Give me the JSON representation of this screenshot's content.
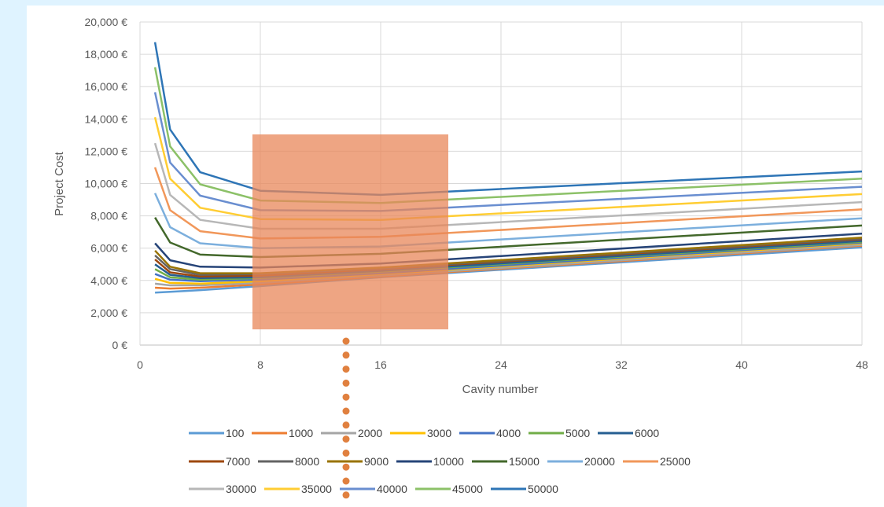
{
  "chart_data": {
    "type": "line",
    "xlabel": "Cavity number",
    "ylabel": "Project Cost",
    "xlim": [
      0,
      48
    ],
    "ylim": [
      0,
      20000
    ],
    "x_ticks": [
      "0",
      "8",
      "16",
      "24",
      "32",
      "40",
      "48"
    ],
    "y_ticks": [
      "0 €",
      "2,000 €",
      "4,000 €",
      "6,000 €",
      "8,000 €",
      "10,000 €",
      "12,000 €",
      "14,000 €",
      "16,000 €",
      "18,000 €",
      "20,000 €"
    ],
    "grid": "vertical and horizontal",
    "legend_position": "bottom",
    "x": [
      1,
      2,
      4,
      8,
      16,
      48
    ],
    "series": [
      {
        "name": "100",
        "color": "#5b9bd5",
        "values": [
          3250,
          3300,
          3400,
          3650,
          4200,
          6050
        ]
      },
      {
        "name": "1000",
        "color": "#ed7d31",
        "values": [
          3550,
          3500,
          3550,
          3750,
          4250,
          6150
        ]
      },
      {
        "name": "2000",
        "color": "#a5a5a5",
        "values": [
          3800,
          3700,
          3700,
          3850,
          4300,
          6200
        ]
      },
      {
        "name": "3000",
        "color": "#ffc000",
        "values": [
          4100,
          3850,
          3800,
          3950,
          4400,
          6300
        ]
      },
      {
        "name": "4000",
        "color": "#4472c4",
        "values": [
          4400,
          4050,
          3950,
          4050,
          4450,
          6350
        ]
      },
      {
        "name": "5000",
        "color": "#70ad47",
        "values": [
          4700,
          4200,
          4050,
          4150,
          4550,
          6400
        ]
      },
      {
        "name": "6000",
        "color": "#255e91",
        "values": [
          5000,
          4350,
          4150,
          4200,
          4600,
          6450
        ]
      },
      {
        "name": "7000",
        "color": "#9e480e",
        "values": [
          5300,
          4500,
          4250,
          4300,
          4700,
          6550
        ]
      },
      {
        "name": "8000",
        "color": "#636363",
        "values": [
          5550,
          4700,
          4350,
          4400,
          4750,
          6600
        ]
      },
      {
        "name": "9000",
        "color": "#997300",
        "values": [
          5850,
          4850,
          4450,
          4450,
          4800,
          6650
        ]
      },
      {
        "name": "10000",
        "color": "#264478",
        "values": [
          6300,
          5250,
          4850,
          4800,
          5050,
          6900
        ]
      },
      {
        "name": "15000",
        "color": "#43682b",
        "values": [
          7900,
          6350,
          5600,
          5450,
          5650,
          7400
        ]
      },
      {
        "name": "20000",
        "color": "#7cafdd",
        "values": [
          9400,
          7300,
          6300,
          6000,
          6100,
          7850
        ]
      },
      {
        "name": "25000",
        "color": "#f1975a",
        "values": [
          11000,
          8350,
          7050,
          6600,
          6700,
          8400
        ]
      },
      {
        "name": "30000",
        "color": "#b7b7b7",
        "values": [
          12500,
          9300,
          7750,
          7200,
          7200,
          8850
        ]
      },
      {
        "name": "35000",
        "color": "#ffcd33",
        "values": [
          14100,
          10300,
          8500,
          7800,
          7750,
          9350
        ]
      },
      {
        "name": "40000",
        "color": "#698ed0",
        "values": [
          15650,
          11300,
          9250,
          8350,
          8300,
          9800
        ]
      },
      {
        "name": "45000",
        "color": "#8cc168",
        "values": [
          17200,
          12300,
          9950,
          8950,
          8800,
          10300
        ]
      },
      {
        "name": "50000",
        "color": "#2e75b6",
        "values": [
          18750,
          13350,
          10700,
          9550,
          9300,
          10750
        ]
      }
    ]
  }
}
